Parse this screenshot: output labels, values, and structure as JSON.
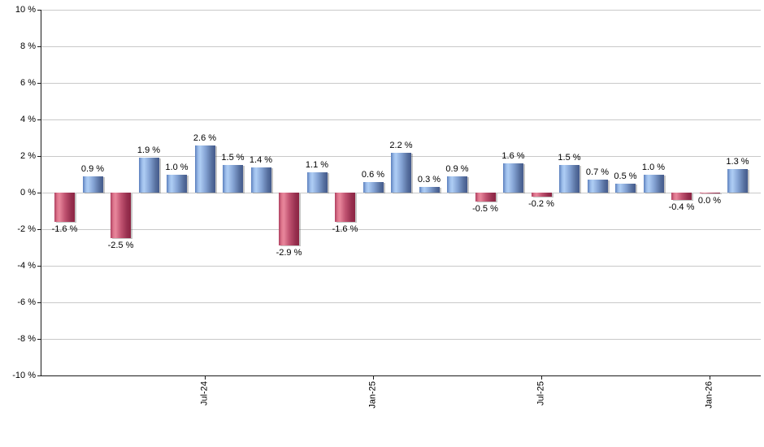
{
  "chart_data": {
    "type": "bar",
    "title": "",
    "xlabel": "",
    "ylabel": "",
    "ylim": [
      -10,
      10
    ],
    "grid": true,
    "values": [
      -1.6,
      0.9,
      -2.5,
      1.9,
      1.0,
      2.6,
      1.5,
      1.4,
      -2.9,
      1.1,
      -1.6,
      0.6,
      2.2,
      0.3,
      0.9,
      -0.5,
      1.6,
      -0.2,
      1.5,
      0.7,
      0.5,
      1.0,
      -0.4,
      0.0,
      1.3
    ],
    "bar_labels": [
      "-1.6 %",
      "0.9 %",
      "-2.5 %",
      "1.9 %",
      "1.0 %",
      "2.6 %",
      "1.5 %",
      "1.4 %",
      "-2.9 %",
      "1.1 %",
      "-1.6 %",
      "0.6 %",
      "2.2 %",
      "0.3 %",
      "0.9 %",
      "-0.5 %",
      "1.6 %",
      "-0.2 %",
      "1.5 %",
      "0.7 %",
      "0.5 %",
      "1.0 %",
      "-0.4 %",
      "0.0 %",
      "1.3 %"
    ],
    "y_tick_labels": [
      "10 %",
      "8 %",
      "6 %",
      "4 %",
      "2 %",
      "0 %",
      "-2 %",
      "-4 %",
      "-6 %",
      "-8 %",
      "-10 %"
    ],
    "y_tick_values": [
      10,
      8,
      6,
      4,
      2,
      0,
      -2,
      -4,
      -6,
      -8,
      -10
    ],
    "x_tick_labels": [
      "Jul-24",
      "Jan-25",
      "Jul-25",
      "Jan-26"
    ],
    "x_tick_indices": [
      5,
      11,
      17,
      23
    ],
    "colors": {
      "positive_bar_light": "#aecdf4",
      "positive_bar_dark": "#445a8c",
      "negative_bar_light": "#e7869b",
      "negative_bar_dark": "#8c2443",
      "gridline": "#c9c9c9",
      "axis": "#1a1a1a",
      "label_text": "#000000",
      "background": "#ffffff"
    }
  }
}
